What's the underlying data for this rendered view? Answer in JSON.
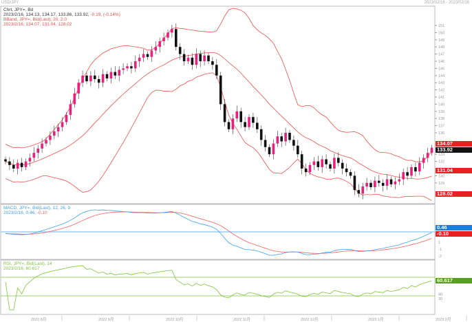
{
  "header": {
    "title": "USD/JPY",
    "right": "2023/02/16 - 2023/02/16"
  },
  "legend": {
    "price_title": "Chrt, JPY=, Bd",
    "price_values": "2023/2/16, 134.13, 134.17, 133.86, 133.92,",
    "price_change": "-0.19, (-0.14%)",
    "bband_title": "BBand, JPY=, Bid(Last), 20, 2.0",
    "bband_values": "2023/2/16, 134.07, 131.04, 128.02",
    "macd_title": "MACD, JPY=, Bid(Last), 12, 26, 9",
    "macd_values": "2023/2/16, 0.46,",
    "macd_signal_value": "-0.10",
    "rsi_title": "RSI, JPY=, Bid(Last), 14",
    "rsi_values": "2023/2/16, 60.617"
  },
  "tags": {
    "bb_upper": "134.07",
    "last": "133.92",
    "bb_mid": "131.04",
    "bb_lower": "128.02",
    "macd": "0.46",
    "signal": "-0.10",
    "rsi": "60.617"
  },
  "colors": {
    "up": "#e8207e",
    "down": "#111111",
    "band": "#e8504a",
    "macd": "#3aa0f0",
    "signal": "#f06060",
    "rsi": "#7cc43a",
    "hline": "#9ccff0"
  },
  "chart_data": {
    "type": "candlestick",
    "price_ticks": [
      151,
      150,
      149,
      148,
      147,
      146,
      145,
      144,
      143,
      142,
      141,
      140,
      139,
      138,
      137,
      136,
      133,
      132,
      130,
      129
    ],
    "x_ticks": [
      "2022 8月",
      "2022 9月",
      "2022 10月",
      "2022 11月",
      "2022 12月",
      "2023 1月",
      "2023 2月"
    ],
    "rsi_ticks": [
      40,
      30
    ],
    "macd_ticks": [
      1,
      -1,
      -2
    ],
    "rsi_levels": [
      70,
      30
    ],
    "closes": [
      132,
      131.5,
      131,
      131.8,
      131.2,
      132,
      132.5,
      133.2,
      133.8,
      134.5,
      135,
      135.6,
      136.2,
      136.8,
      137.5,
      138.5,
      140,
      141.5,
      143,
      144,
      143.2,
      144,
      143.5,
      143,
      144.2,
      143.6,
      144.5,
      144,
      144.8,
      145,
      145.3,
      145,
      146,
      146.5,
      147,
      146.6,
      147.5,
      148,
      148.8,
      149.3,
      150,
      150.5,
      148,
      147,
      146,
      146.5,
      145.5,
      147,
      146,
      146.8,
      146,
      145.5,
      144,
      140,
      137.5,
      136.5,
      138,
      139,
      137.5,
      136.8,
      138.2,
      137.4,
      136.5,
      135,
      134,
      133,
      134.5,
      135.5,
      134.8,
      136,
      135,
      134.2,
      133,
      131,
      130.5,
      131.5,
      132,
      131.2,
      132.3,
      131.6,
      131,
      132.5,
      131.8,
      131,
      130.5,
      130,
      128,
      127.5,
      128.5,
      129,
      128.4,
      129.3,
      129,
      128.6,
      129.5,
      128.8,
      129.2,
      129.5,
      130.5,
      130,
      131.2,
      130.6,
      131.8,
      132.5,
      133.2,
      133.92
    ]
  }
}
